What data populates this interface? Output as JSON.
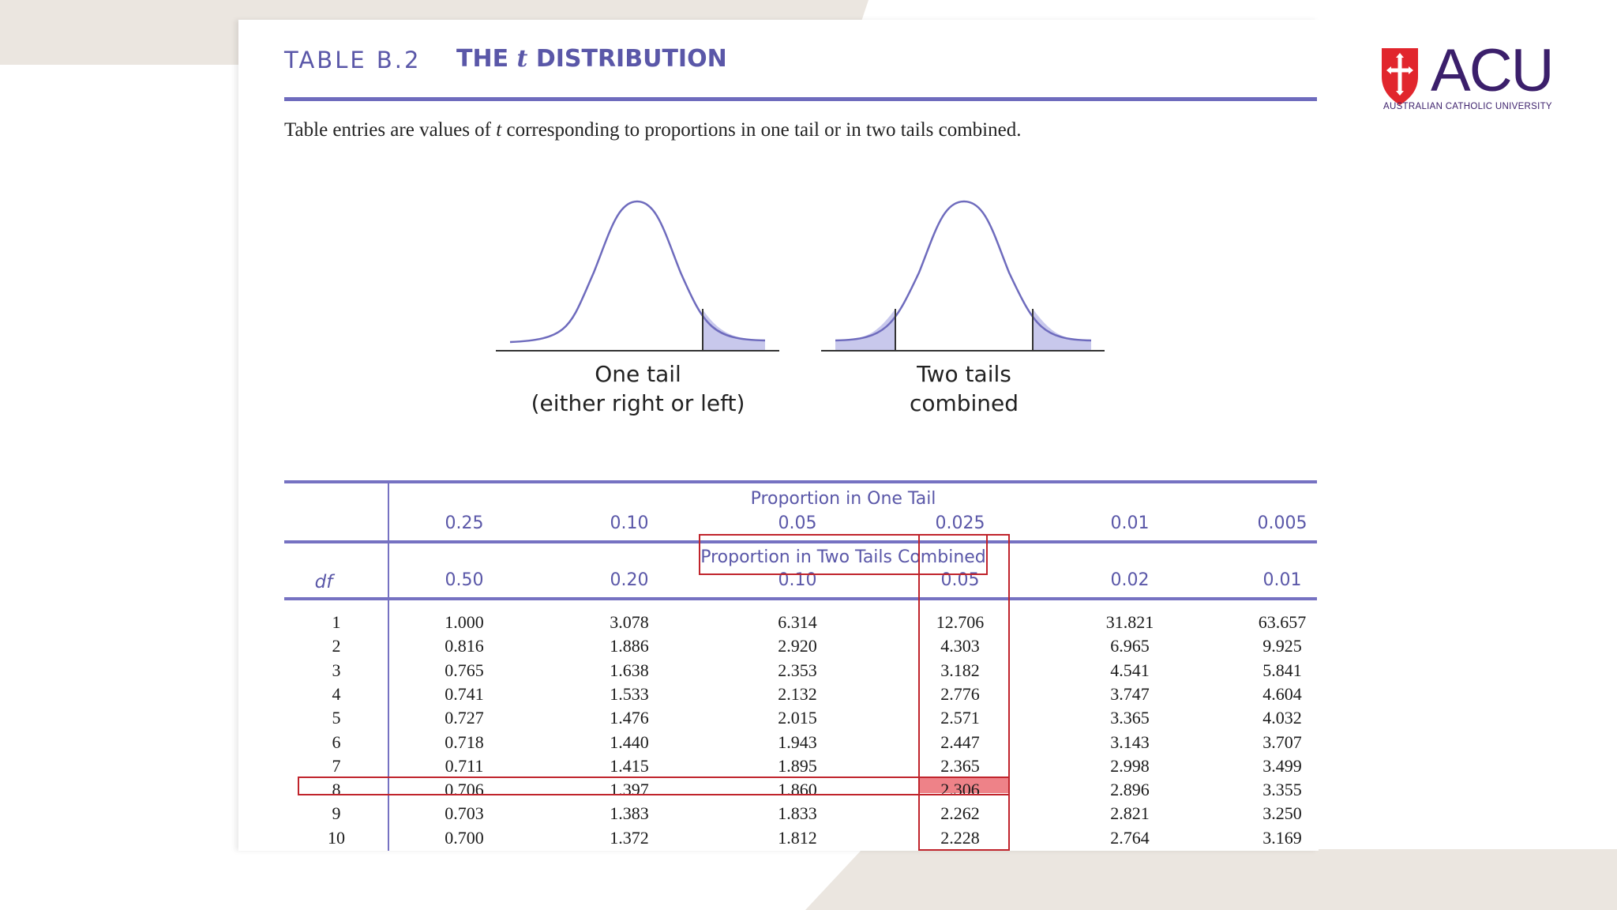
{
  "title": {
    "table_number": "TABLE B.2",
    "name_prefix": "THE ",
    "name_var": "t",
    "name_suffix": " DISTRIBUTION"
  },
  "intro": {
    "before": "Table entries are values of ",
    "var": "t",
    "after": " corresponding to proportions in one tail or in two tails combined."
  },
  "figures": {
    "one_tail_label_1": "One tail",
    "one_tail_label_2": "(either right or left)",
    "two_tails_label_1": "Two tails",
    "two_tails_label_2": "combined"
  },
  "table": {
    "one_tail_heading": "Proportion in One Tail",
    "two_tails_heading": "Proportion in Two Tails Combined",
    "df_label": "df",
    "one_tail": [
      "0.25",
      "0.10",
      "0.05",
      "0.025",
      "0.01",
      "0.005"
    ],
    "two_tails": [
      "0.50",
      "0.20",
      "0.10",
      "0.05",
      "0.02",
      "0.01"
    ],
    "rows": [
      {
        "df": "1",
        "values": [
          "1.000",
          "3.078",
          "6.314",
          "12.706",
          "31.821",
          "63.657"
        ]
      },
      {
        "df": "2",
        "values": [
          "0.816",
          "1.886",
          "2.920",
          "4.303",
          "6.965",
          "9.925"
        ]
      },
      {
        "df": "3",
        "values": [
          "0.765",
          "1.638",
          "2.353",
          "3.182",
          "4.541",
          "5.841"
        ]
      },
      {
        "df": "4",
        "values": [
          "0.741",
          "1.533",
          "2.132",
          "2.776",
          "3.747",
          "4.604"
        ]
      },
      {
        "df": "5",
        "values": [
          "0.727",
          "1.476",
          "2.015",
          "2.571",
          "3.365",
          "4.032"
        ]
      },
      {
        "df": "6",
        "values": [
          "0.718",
          "1.440",
          "1.943",
          "2.447",
          "3.143",
          "3.707"
        ]
      },
      {
        "df": "7",
        "values": [
          "0.711",
          "1.415",
          "1.895",
          "2.365",
          "2.998",
          "3.499"
        ]
      },
      {
        "df": "8",
        "values": [
          "0.706",
          "1.397",
          "1.860",
          "2.306",
          "2.896",
          "3.355"
        ]
      },
      {
        "df": "9",
        "values": [
          "0.703",
          "1.383",
          "1.833",
          "2.262",
          "2.821",
          "3.250"
        ]
      },
      {
        "df": "10",
        "values": [
          "0.700",
          "1.372",
          "1.812",
          "2.228",
          "2.764",
          "3.169"
        ]
      }
    ]
  },
  "highlights": {
    "row_df": "8",
    "column_two_tails": "0.05",
    "cell_value": "2.306",
    "color": "#c0242c"
  },
  "logo": {
    "name": "ACU",
    "subtitle": "AUSTRALIAN CATHOLIC UNIVERSITY",
    "shield_icon": "red-shield-cross-icon",
    "color": "#3b1f6b"
  },
  "colors": {
    "accent": "#5a57a8",
    "background_shape": "#ebe6e0"
  }
}
